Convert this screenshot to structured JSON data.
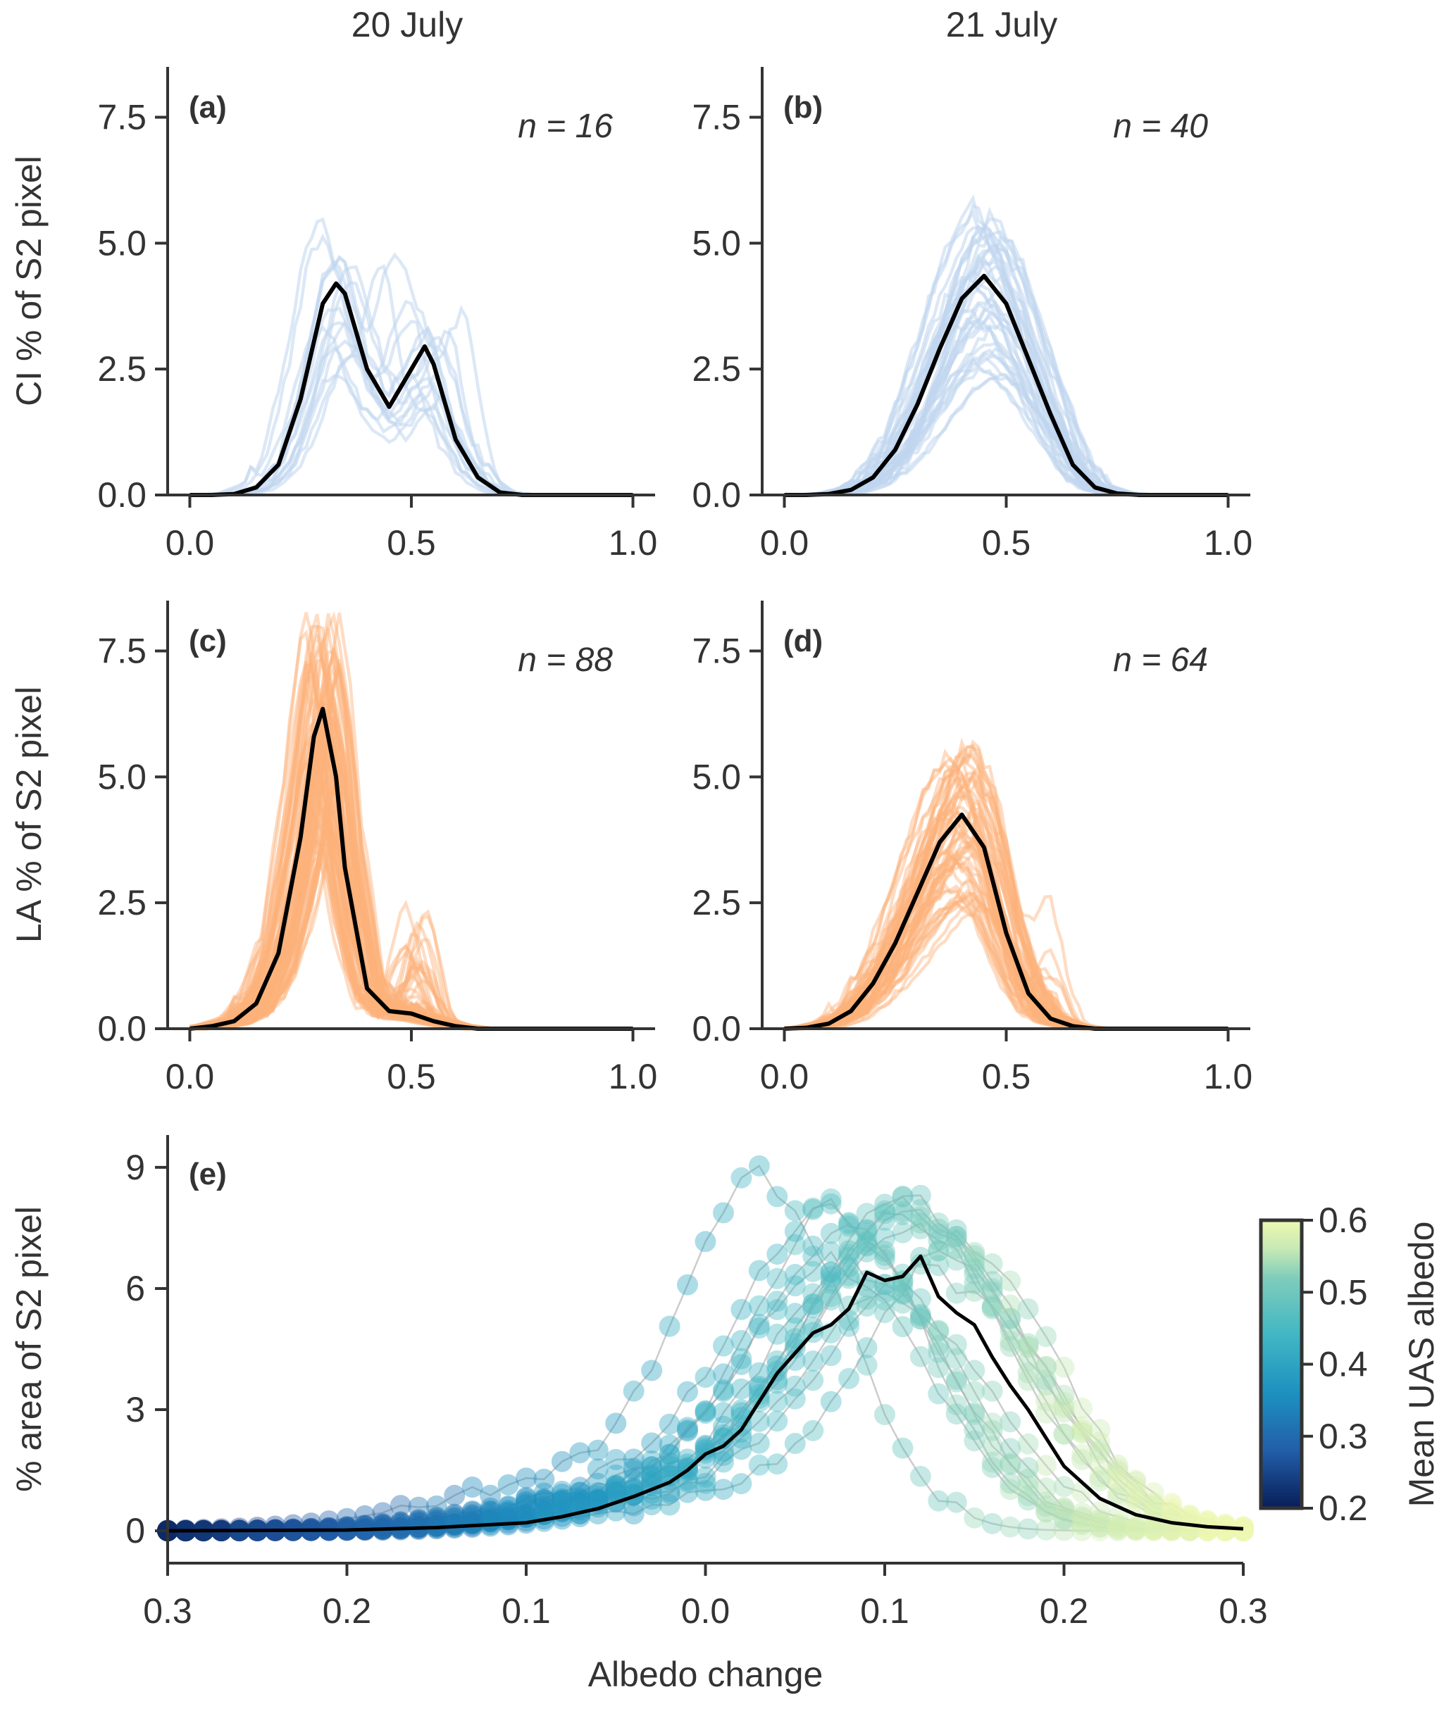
{
  "figure": {
    "col_titles": [
      "20 July",
      "21 July"
    ],
    "colors": {
      "ci": "#bfd6ee",
      "la": "#fdb27b",
      "mean": "#000000",
      "axis": "#333333",
      "grey": "#aaaaaa"
    }
  },
  "chart_data": [
    {
      "id": "a",
      "type": "line",
      "panel_label": "(a)",
      "n_label": "n = 16",
      "ylabel": "CI % of S2 pixel",
      "xlim": [
        -0.05,
        1.05
      ],
      "ylim": [
        0,
        8.5
      ],
      "xticks": [
        "0.0",
        "0.5",
        "1.0"
      ],
      "yticks": [
        "0.0",
        "2.5",
        "5.0",
        "7.5"
      ],
      "individual_count": 16,
      "mean": {
        "x": [
          0.0,
          0.05,
          0.1,
          0.15,
          0.2,
          0.25,
          0.3,
          0.33,
          0.35,
          0.4,
          0.45,
          0.5,
          0.53,
          0.55,
          0.6,
          0.65,
          0.7,
          0.75,
          0.8,
          0.9,
          1.0
        ],
        "y": [
          0,
          0,
          0.02,
          0.15,
          0.6,
          1.9,
          3.8,
          4.2,
          4.0,
          2.5,
          1.75,
          2.5,
          2.95,
          2.6,
          1.1,
          0.35,
          0.05,
          0,
          0,
          0,
          0
        ]
      }
    },
    {
      "id": "b",
      "type": "line",
      "panel_label": "(b)",
      "n_label": "n = 40",
      "ylabel": "",
      "xlim": [
        -0.05,
        1.05
      ],
      "ylim": [
        0,
        8.5
      ],
      "xticks": [
        "0.0",
        "0.5",
        "1.0"
      ],
      "yticks": [
        "0.0",
        "2.5",
        "5.0",
        "7.5"
      ],
      "individual_count": 40,
      "mean": {
        "x": [
          0.0,
          0.05,
          0.1,
          0.15,
          0.2,
          0.25,
          0.3,
          0.35,
          0.4,
          0.45,
          0.5,
          0.55,
          0.6,
          0.65,
          0.7,
          0.75,
          0.8,
          0.9,
          1.0
        ],
        "y": [
          0,
          0,
          0.02,
          0.1,
          0.35,
          0.9,
          1.8,
          2.9,
          3.9,
          4.35,
          3.8,
          2.7,
          1.6,
          0.6,
          0.15,
          0.03,
          0,
          0,
          0
        ]
      }
    },
    {
      "id": "c",
      "type": "line",
      "panel_label": "(c)",
      "n_label": "n = 88",
      "ylabel": "LA % of S2 pixel",
      "xlim": [
        -0.05,
        1.05
      ],
      "ylim": [
        0,
        8.5
      ],
      "xticks": [
        "0.0",
        "0.5",
        "1.0"
      ],
      "yticks": [
        "0.0",
        "2.5",
        "5.0",
        "7.5"
      ],
      "individual_count": 88,
      "mean": {
        "x": [
          0.0,
          0.05,
          0.1,
          0.15,
          0.2,
          0.25,
          0.28,
          0.3,
          0.33,
          0.35,
          0.4,
          0.45,
          0.5,
          0.55,
          0.6,
          0.65,
          0.7,
          0.8,
          0.9,
          1.0
        ],
        "y": [
          0,
          0.05,
          0.15,
          0.5,
          1.5,
          3.8,
          5.8,
          6.35,
          5.0,
          3.2,
          0.8,
          0.35,
          0.3,
          0.15,
          0.05,
          0,
          0,
          0,
          0,
          0
        ]
      }
    },
    {
      "id": "d",
      "type": "line",
      "panel_label": "(d)",
      "n_label": "n = 64",
      "ylabel": "",
      "xlim": [
        -0.05,
        1.05
      ],
      "ylim": [
        0,
        8.5
      ],
      "xticks": [
        "0.0",
        "0.5",
        "1.0"
      ],
      "yticks": [
        "0.0",
        "2.5",
        "5.0",
        "7.5"
      ],
      "individual_count": 64,
      "mean": {
        "x": [
          0.0,
          0.05,
          0.1,
          0.15,
          0.2,
          0.25,
          0.3,
          0.35,
          0.4,
          0.45,
          0.5,
          0.55,
          0.6,
          0.65,
          0.7,
          0.8,
          0.9,
          1.0
        ],
        "y": [
          0,
          0.02,
          0.1,
          0.35,
          0.9,
          1.7,
          2.7,
          3.7,
          4.25,
          3.6,
          1.9,
          0.7,
          0.2,
          0.05,
          0,
          0,
          0,
          0
        ]
      }
    },
    {
      "id": "e",
      "type": "scatter",
      "panel_label": "(e)",
      "xlabel": "Albedo change",
      "ylabel": "% area of S2 pixel",
      "xlim": [
        -0.3,
        0.3
      ],
      "ylim": [
        -0.8,
        9.8
      ],
      "xticks": [
        -0.3,
        -0.2,
        -0.1,
        0.0,
        0.1,
        0.2,
        0.3
      ],
      "xtick_labels": [
        "0.3",
        "0.2",
        "0.1",
        "0.0",
        "0.1",
        "0.2",
        "0.3"
      ],
      "yticks": [
        "0",
        "3",
        "6",
        "9"
      ],
      "colorbar": {
        "label": "Mean UAS albedo",
        "range": [
          0.2,
          0.6
        ],
        "ticks": [
          "0.2",
          "0.3",
          "0.4",
          "0.5",
          "0.6"
        ]
      },
      "mean": {
        "x": [
          -0.3,
          -0.2,
          -0.15,
          -0.1,
          -0.08,
          -0.06,
          -0.04,
          -0.02,
          -0.01,
          0.0,
          0.01,
          0.02,
          0.03,
          0.04,
          0.05,
          0.06,
          0.07,
          0.08,
          0.09,
          0.1,
          0.11,
          0.12,
          0.13,
          0.14,
          0.15,
          0.16,
          0.17,
          0.18,
          0.19,
          0.2,
          0.22,
          0.24,
          0.26,
          0.28,
          0.3
        ],
        "y": [
          0,
          0.02,
          0.08,
          0.2,
          0.35,
          0.55,
          0.85,
          1.2,
          1.5,
          1.9,
          2.1,
          2.5,
          3.2,
          3.9,
          4.4,
          4.9,
          5.1,
          5.5,
          6.4,
          6.2,
          6.3,
          6.8,
          5.8,
          5.4,
          5.1,
          4.3,
          3.6,
          3.0,
          2.3,
          1.6,
          0.8,
          0.4,
          0.2,
          0.1,
          0.05
        ]
      }
    }
  ]
}
